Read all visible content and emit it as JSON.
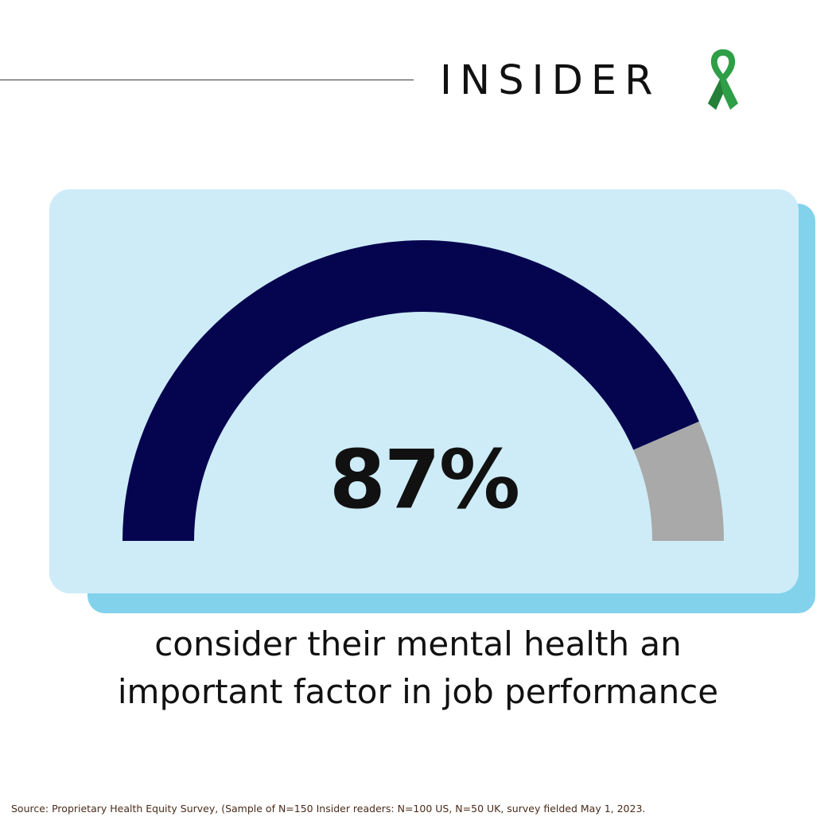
{
  "brand": {
    "name": "INSIDER",
    "ribbon_icon": "green-awareness-ribbon-icon",
    "ribbon_color": "#2e9e47"
  },
  "chart_data": {
    "type": "gauge",
    "value": 87,
    "max": 100,
    "label": "87%",
    "caption": "consider their mental health an important factor in job performance",
    "colors": {
      "filled": "#05054f",
      "remainder": "#a9a9a9",
      "card": "#cdecf8",
      "card_shadow": "#82d2ec"
    }
  },
  "caption": {
    "line1": "consider their mental health an",
    "line2": "important factor in job performance"
  },
  "source": "Source: Proprietary Health Equity Survey, (Sample of N=150 Insider readers: N=100 US, N=50 UK, survey fielded May 1, 2023."
}
